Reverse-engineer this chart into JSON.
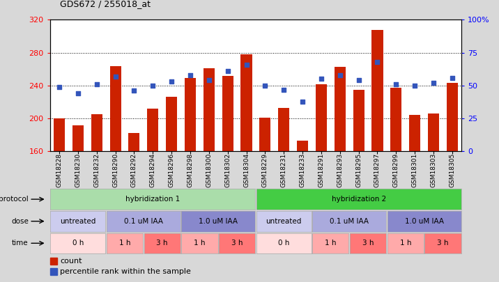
{
  "title": "GDS672 / 255018_at",
  "samples": [
    "GSM18228",
    "GSM18230",
    "GSM18232",
    "GSM18290",
    "GSM18292",
    "GSM18294",
    "GSM18296",
    "GSM18298",
    "GSM18300",
    "GSM18302",
    "GSM18304",
    "GSM18229",
    "GSM18231",
    "GSM18233",
    "GSM18291",
    "GSM18293",
    "GSM18295",
    "GSM18297",
    "GSM18299",
    "GSM18301",
    "GSM18303",
    "GSM18305"
  ],
  "bar_values": [
    200,
    192,
    205,
    264,
    182,
    212,
    226,
    249,
    261,
    252,
    278,
    201,
    213,
    173,
    242,
    263,
    235,
    308,
    237,
    204,
    206,
    243
  ],
  "percentile_values": [
    49,
    44,
    51,
    57,
    46,
    50,
    53,
    58,
    54,
    61,
    66,
    50,
    47,
    38,
    55,
    58,
    54,
    68,
    51,
    50,
    52,
    56
  ],
  "ylim_left": [
    160,
    320
  ],
  "ylim_right": [
    0,
    100
  ],
  "yticks_left": [
    160,
    200,
    240,
    280,
    320
  ],
  "yticks_right": [
    0,
    25,
    50,
    75,
    100
  ],
  "ytick_labels_right": [
    "0",
    "25",
    "50",
    "75",
    "100%"
  ],
  "bar_color": "#cc2200",
  "dot_color": "#3355bb",
  "outer_bg": "#d8d8d8",
  "plot_bg": "#ffffff",
  "protocol_row": {
    "label": "protocol",
    "groups": [
      {
        "text": "hybridization 1",
        "start": 0,
        "end": 11,
        "color": "#aaddaa"
      },
      {
        "text": "hybridization 2",
        "start": 11,
        "end": 22,
        "color": "#44cc44"
      }
    ]
  },
  "dose_row": {
    "label": "dose",
    "groups": [
      {
        "text": "untreated",
        "start": 0,
        "end": 3,
        "color": "#ccccee"
      },
      {
        "text": "0.1 uM IAA",
        "start": 3,
        "end": 7,
        "color": "#aaaadd"
      },
      {
        "text": "1.0 uM IAA",
        "start": 7,
        "end": 11,
        "color": "#8888cc"
      },
      {
        "text": "untreated",
        "start": 11,
        "end": 14,
        "color": "#ccccee"
      },
      {
        "text": "0.1 uM IAA",
        "start": 14,
        "end": 18,
        "color": "#aaaadd"
      },
      {
        "text": "1.0 uM IAA",
        "start": 18,
        "end": 22,
        "color": "#8888cc"
      }
    ]
  },
  "time_row": {
    "label": "time",
    "groups": [
      {
        "text": "0 h",
        "start": 0,
        "end": 3,
        "color": "#ffdddd"
      },
      {
        "text": "1 h",
        "start": 3,
        "end": 5,
        "color": "#ffaaaa"
      },
      {
        "text": "3 h",
        "start": 5,
        "end": 7,
        "color": "#ff7777"
      },
      {
        "text": "1 h",
        "start": 7,
        "end": 9,
        "color": "#ffaaaa"
      },
      {
        "text": "3 h",
        "start": 9,
        "end": 11,
        "color": "#ff7777"
      },
      {
        "text": "0 h",
        "start": 11,
        "end": 14,
        "color": "#ffdddd"
      },
      {
        "text": "1 h",
        "start": 14,
        "end": 16,
        "color": "#ffaaaa"
      },
      {
        "text": "3 h",
        "start": 16,
        "end": 18,
        "color": "#ff7777"
      },
      {
        "text": "1 h",
        "start": 18,
        "end": 20,
        "color": "#ffaaaa"
      },
      {
        "text": "3 h",
        "start": 20,
        "end": 22,
        "color": "#ff7777"
      }
    ]
  }
}
